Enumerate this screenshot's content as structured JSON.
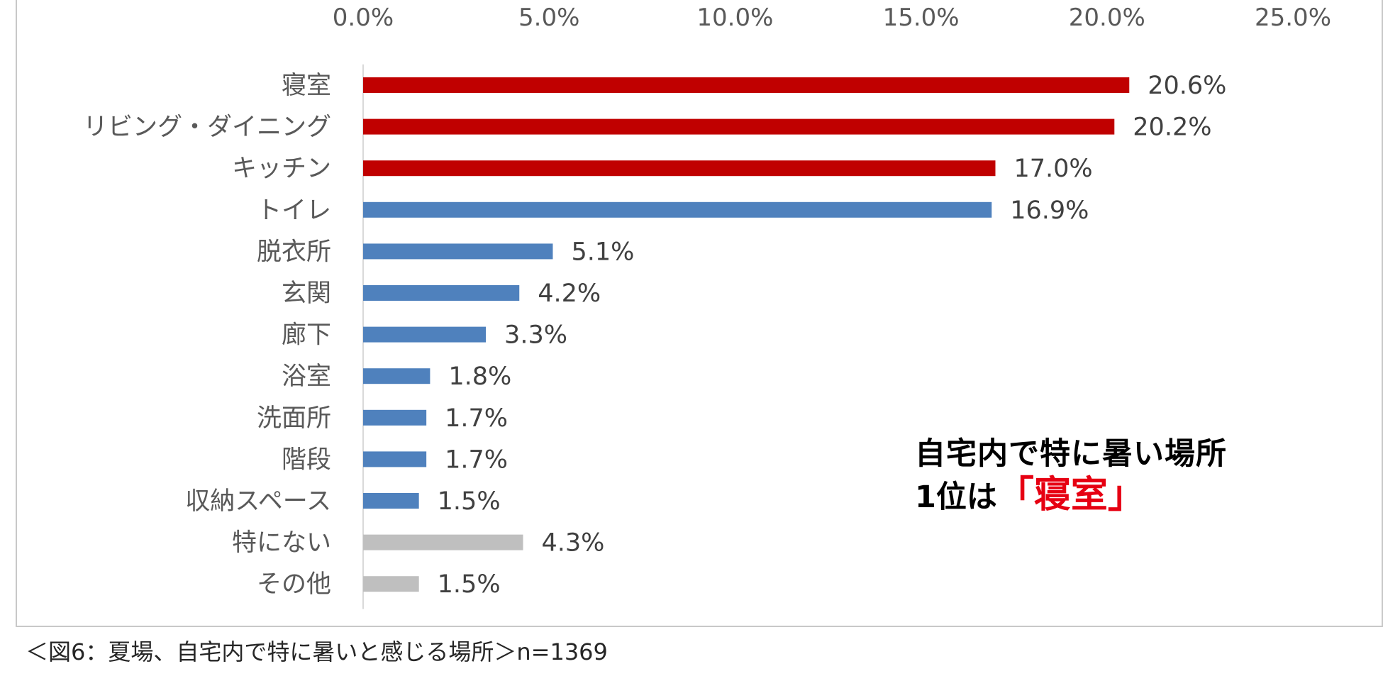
{
  "chart_data": {
    "type": "bar",
    "orientation": "horizontal",
    "categories": [
      "寝室",
      "リビング・ダイニング",
      "キッチン",
      "トイレ",
      "脱衣所",
      "玄関",
      "廊下",
      "浴室",
      "洗面所",
      "階段",
      "収納スペース",
      "特にない",
      "その他"
    ],
    "values": [
      20.6,
      20.2,
      17.0,
      16.9,
      5.1,
      4.2,
      3.3,
      1.8,
      1.7,
      1.7,
      1.5,
      4.3,
      1.5
    ],
    "value_labels": [
      "20.6%",
      "20.2%",
      "17.0%",
      "16.9%",
      "5.1%",
      "4.2%",
      "3.3%",
      "1.8%",
      "1.7%",
      "1.7%",
      "1.5%",
      "4.3%",
      "1.5%"
    ],
    "bar_colors": [
      "#c00000",
      "#c00000",
      "#c00000",
      "#4f81bd",
      "#4f81bd",
      "#4f81bd",
      "#4f81bd",
      "#4f81bd",
      "#4f81bd",
      "#4f81bd",
      "#4f81bd",
      "#bfbfbf",
      "#bfbfbf"
    ],
    "xlim": [
      0,
      25
    ],
    "x_ticks": [
      0,
      5,
      10,
      15,
      20,
      25
    ],
    "x_tick_labels": [
      "0.0%",
      "5.0%",
      "10.0%",
      "15.0%",
      "20.0%",
      "25.0%"
    ],
    "x_axis_position": "top",
    "grid": false,
    "legend": "none"
  },
  "callout": {
    "line1": "自宅内で特に暑い場所",
    "line2_prefix": "1位は",
    "line2_highlight": "「寝室」",
    "highlight_color": "#e60012"
  },
  "caption": "＜図6：夏場、自宅内で特に暑いと感じる場所＞n=1369"
}
